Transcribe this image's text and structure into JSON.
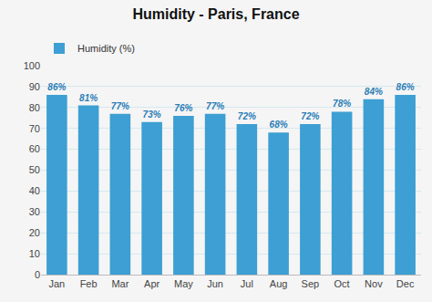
{
  "chart_data": {
    "type": "bar",
    "title": "Humidity - Paris, France",
    "categories": [
      "Jan",
      "Feb",
      "Mar",
      "Apr",
      "May",
      "Jun",
      "Jul",
      "Aug",
      "Sep",
      "Oct",
      "Nov",
      "Dec"
    ],
    "series": [
      {
        "name": "Humidity (%)",
        "color": "#3d9fd3",
        "values": [
          86,
          81,
          77,
          73,
          76,
          77,
          72,
          68,
          72,
          78,
          84,
          86
        ],
        "value_labels": [
          "86%",
          "81%",
          "77%",
          "73%",
          "76%",
          "77%",
          "72%",
          "68%",
          "72%",
          "78%",
          "84%",
          "86%"
        ]
      }
    ],
    "ylim": [
      0,
      100
    ],
    "yticks": [
      0,
      10,
      20,
      30,
      40,
      50,
      60,
      70,
      80,
      90,
      100
    ],
    "grid": true,
    "data_labels": true,
    "legend": "upper left"
  }
}
